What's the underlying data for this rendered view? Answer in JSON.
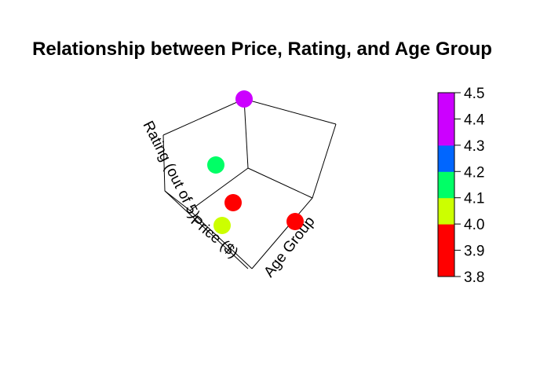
{
  "chart_data": {
    "type": "scatter",
    "title": "Relationship between Price, Rating, and Age Group",
    "xlabel": "Price ($)",
    "ylabel": "Age Group",
    "zlabel": "Rating (out of 5)",
    "color_variable": "Rating (out of 5)",
    "colorbar": {
      "ticks": [
        "3.8",
        "3.9",
        "4.0",
        "4.1",
        "4.2",
        "4.3",
        "4.4",
        "4.5"
      ],
      "bins": [
        {
          "from": 3.8,
          "to": 3.9,
          "color": "#FF0000"
        },
        {
          "from": 3.9,
          "to": 4.0,
          "color": "#FF0000"
        },
        {
          "from": 4.0,
          "to": 4.1,
          "color": "#CCFF00"
        },
        {
          "from": 4.1,
          "to": 4.2,
          "color": "#00FF66"
        },
        {
          "from": 4.2,
          "to": 4.3,
          "color": "#0066FF"
        },
        {
          "from": 4.3,
          "to": 4.4,
          "color": "#CC00FF"
        },
        {
          "from": 4.4,
          "to": 4.5,
          "color": "#CC00FF"
        }
      ]
    },
    "points": [
      {
        "rating": 4.5,
        "color": "#CC00FF"
      },
      {
        "rating": 4.2,
        "color": "#00FF66"
      },
      {
        "rating": 3.9,
        "color": "#FF0000"
      },
      {
        "rating": 4.0,
        "color": "#CCFF00"
      },
      {
        "rating": 3.8,
        "color": "#FF0000"
      }
    ],
    "grid": false,
    "legend_position": "right"
  }
}
